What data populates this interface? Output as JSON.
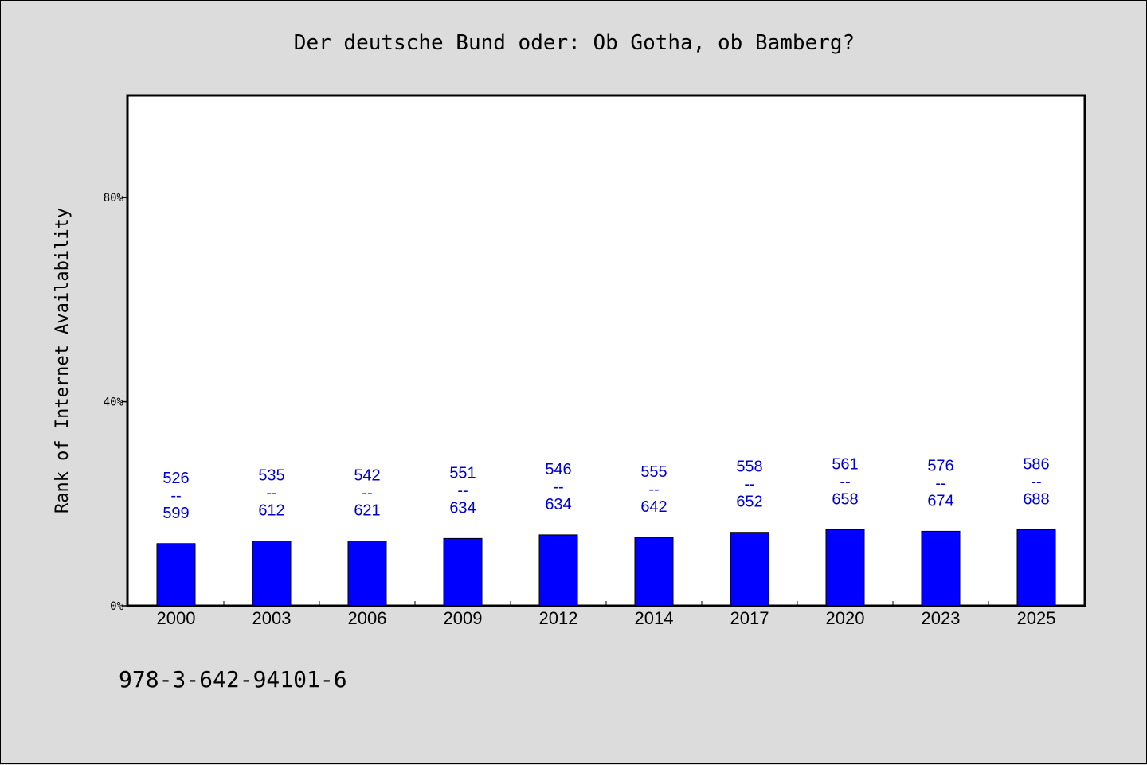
{
  "chart_data": {
    "type": "bar",
    "title": "Der deutsche Bund oder: Ob Gotha, ob Bamberg?",
    "ylabel": "Rank of Internet Availability",
    "xlabel": "",
    "ylim": [
      0,
      100
    ],
    "yticks": [
      0,
      40,
      80
    ],
    "ytick_labels": [
      "0%",
      "40%",
      "80%"
    ],
    "categories": [
      "2000",
      "2003",
      "2006",
      "2009",
      "2012",
      "2014",
      "2017",
      "2020",
      "2023",
      "2025"
    ],
    "values": [
      12.2,
      12.7,
      12.7,
      13.2,
      13.9,
      13.4,
      14.4,
      14.9,
      14.6,
      14.9
    ],
    "data_labels": [
      [
        "526",
        "599"
      ],
      [
        "535",
        "612"
      ],
      [
        "542",
        "621"
      ],
      [
        "551",
        "634"
      ],
      [
        "546",
        "634"
      ],
      [
        "555",
        "642"
      ],
      [
        "558",
        "652"
      ],
      [
        "561",
        "658"
      ],
      [
        "576",
        "674"
      ],
      [
        "586",
        "688"
      ]
    ],
    "label_separator": "--",
    "grid": false,
    "bar_color": "#0000ff",
    "label_color": "#0000cd"
  },
  "footnote": "978-3-642-94101-6"
}
